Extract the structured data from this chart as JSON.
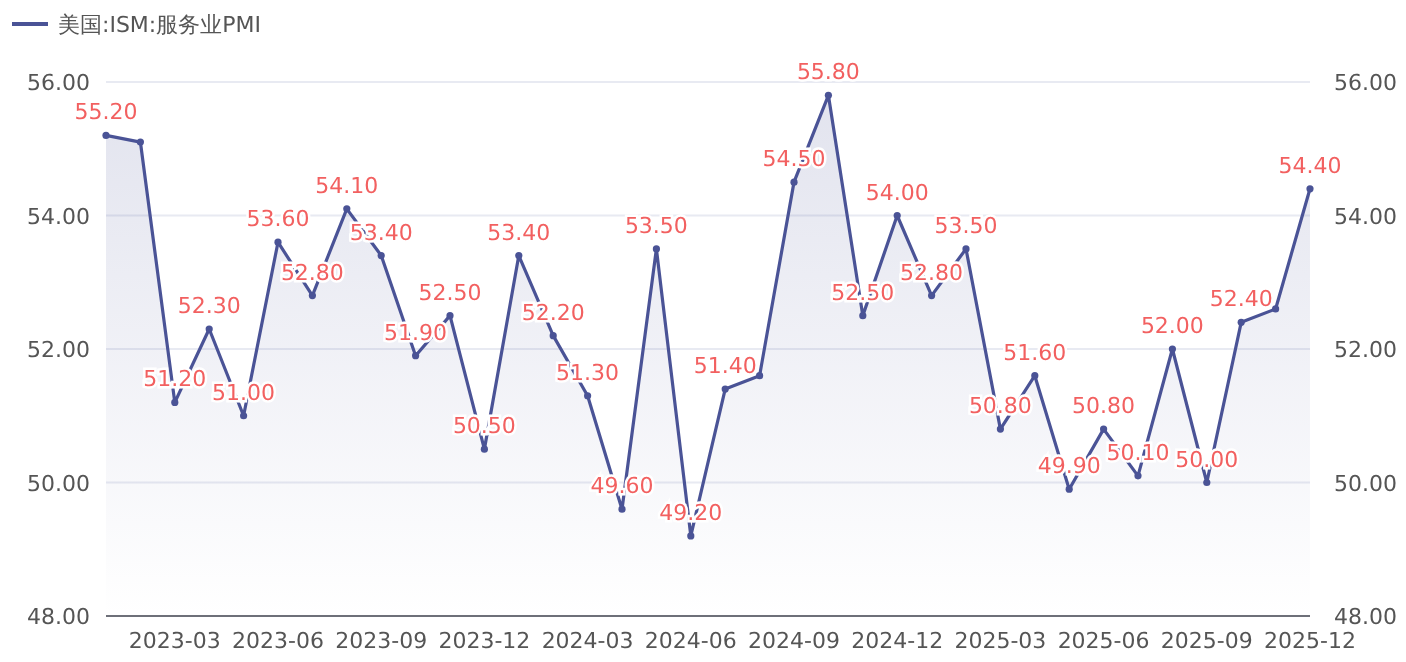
{
  "chart_data": {
    "type": "area",
    "x": [
      "2023-01",
      "2023-02",
      "2023-03",
      "2023-04",
      "2023-05",
      "2023-06",
      "2023-07",
      "2023-08",
      "2023-09",
      "2023-10",
      "2023-11",
      "2023-12",
      "2024-01",
      "2024-02",
      "2024-03",
      "2024-04",
      "2024-05",
      "2024-06",
      "2024-07",
      "2024-08",
      "2024-09",
      "2024-10",
      "2024-11",
      "2024-12",
      "2025-01",
      "2025-02",
      "2025-03",
      "2025-04",
      "2025-05",
      "2025-06",
      "2025-07",
      "2025-08",
      "2025-09",
      "2025-10",
      "2025-11",
      "2025-12"
    ],
    "series": [
      {
        "name": "美国:ISM:服务业PMI",
        "color": "#4a5396",
        "values": [
          55.2,
          55.1,
          51.2,
          52.3,
          51.0,
          53.6,
          52.8,
          54.1,
          53.4,
          51.9,
          52.5,
          50.5,
          53.4,
          52.2,
          51.3,
          49.6,
          53.5,
          49.2,
          51.4,
          51.6,
          54.5,
          55.8,
          52.5,
          54.0,
          52.8,
          53.5,
          50.8,
          51.6,
          49.9,
          50.8,
          50.1,
          52.0,
          50.0,
          52.4,
          52.6,
          54.4
        ],
        "value_labels": [
          "55.20",
          null,
          "51.20",
          "52.30",
          "51.00",
          "53.60",
          "52.80",
          "54.10",
          "53.40",
          "51.90",
          "52.50",
          "50.50",
          "53.40",
          "52.20",
          "51.30",
          "49.60",
          "53.50",
          "49.20",
          "51.40",
          null,
          "54.50",
          "55.80",
          "52.50",
          "54.00",
          "52.80",
          "53.50",
          "50.80",
          "51.60",
          "49.90",
          "50.80",
          "50.10",
          "52.00",
          "50.00",
          "52.40",
          null,
          "54.40"
        ]
      }
    ],
    "xlim": [
      "2023-01",
      "2025-12"
    ],
    "xticks": [
      "2023-03",
      "2023-06",
      "2023-09",
      "2023-12",
      "2024-03",
      "2024-06",
      "2024-09",
      "2024-12",
      "2025-03",
      "2025-06",
      "2025-09",
      "2025-12"
    ],
    "ylim": [
      48,
      56
    ],
    "yticks": [
      {
        "value": 48,
        "label": "48.00"
      },
      {
        "value": 50,
        "label": "50.00"
      },
      {
        "value": 52,
        "label": "52.00"
      },
      {
        "value": 54,
        "label": "54.00"
      },
      {
        "value": 56,
        "label": "56.00"
      }
    ],
    "y2lim": [
      48,
      56
    ],
    "y2ticks": [
      {
        "value": 48,
        "label": "48.00"
      },
      {
        "value": 50,
        "label": "50.00"
      },
      {
        "value": 52,
        "label": "52.00"
      },
      {
        "value": 54,
        "label": "54.00"
      },
      {
        "value": 56,
        "label": "56.00"
      }
    ],
    "grid": "y",
    "legend": "top left",
    "marker": "circle",
    "line_style": "solid"
  }
}
